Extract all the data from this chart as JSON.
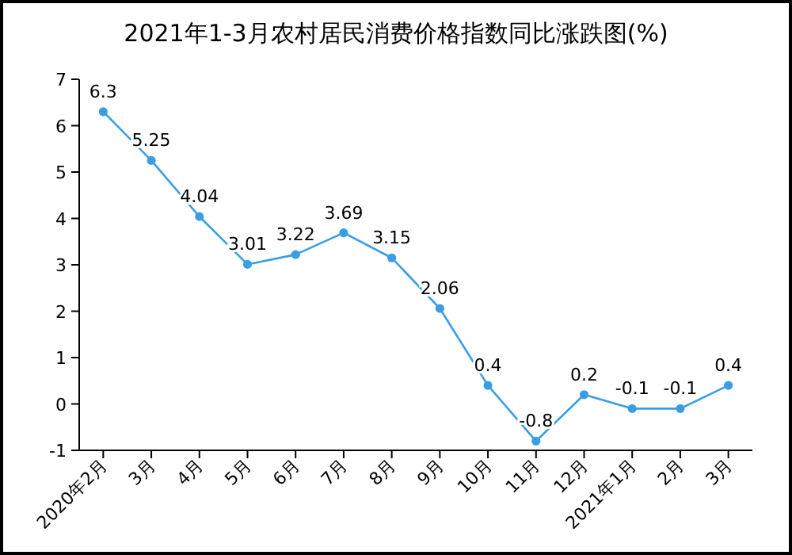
{
  "chart_data": {
    "type": "line",
    "title": "2021年1-3月农村居民消费价格指数同比涨跌图(%)",
    "categories": [
      "2020年2月",
      "3月",
      "4月",
      "5月",
      "6月",
      "7月",
      "8月",
      "9月",
      "10月",
      "11月",
      "12月",
      "2021年1月",
      "2月",
      "3月"
    ],
    "series": [
      {
        "color": "#3a9ee4",
        "values": [
          6.3,
          5.25,
          4.04,
          3.01,
          3.22,
          3.69,
          3.15,
          2.06,
          0.4,
          -0.8,
          0.2,
          -0.1,
          -0.1,
          0.4
        ]
      }
    ],
    "ylim": [
      -1,
      7
    ],
    "yticks": [
      -1,
      0,
      1,
      2,
      3,
      4,
      5,
      6,
      7
    ],
    "grid": false,
    "marker": "circle",
    "line_style": "solid",
    "data_labels": true
  }
}
